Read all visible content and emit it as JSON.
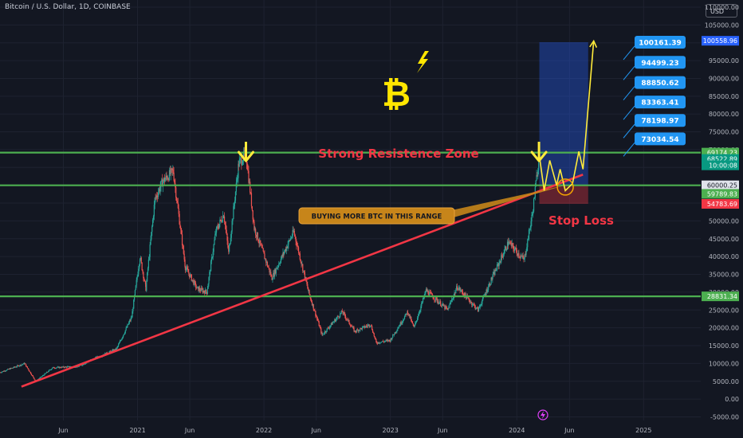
{
  "header": {
    "symbol_title": "Bitcoin / U.S. Dollar, 1D, COINBASE",
    "currency_button": "USD"
  },
  "colors": {
    "background": "#131722",
    "grid": "#1e2230",
    "axis_text": "#b2b5be",
    "up": "#26a69a",
    "down": "#ef5350",
    "support_line": "#4caf50",
    "trendline": "#f23645",
    "projection": "#ffeb3b",
    "target_label": "#2196f3",
    "resistance_text": "#f23645",
    "callout": "#c7851a"
  },
  "chart_data": {
    "type": "candlestick",
    "y_axis": {
      "ticks": [
        "110000.00",
        "105000.00",
        "100000.00",
        "95000.00",
        "90000.00",
        "85000.00",
        "80000.00",
        "75000.00",
        "70000.00",
        "65000.00",
        "60000.00",
        "55000.00",
        "50000.00",
        "45000.00",
        "40000.00",
        "35000.00",
        "30000.00",
        "25000.00",
        "20000.00",
        "15000.00",
        "10000.00",
        "5000.00",
        "0.00",
        "-5000.00"
      ],
      "ylim": [
        -6000,
        112000
      ]
    },
    "x_axis": {
      "ticks": [
        "Jun",
        "2021",
        "Jun",
        "2022",
        "Jun",
        "2023",
        "Jun",
        "2024",
        "Jun",
        "2025"
      ],
      "tick_dates": [
        "2020-06-01",
        "2021-01-01",
        "2021-06-01",
        "2022-01-01",
        "2022-06-01",
        "2023-01-01",
        "2023-06-01",
        "2024-01-01",
        "2024-06-01",
        "2025-01-01"
      ],
      "xlim": [
        "2019-12-01",
        "2025-06-15"
      ]
    },
    "price_path": [
      {
        "date": "2019-12-01",
        "price": 7500
      },
      {
        "date": "2020-02-10",
        "price": 10000
      },
      {
        "date": "2020-03-13",
        "price": 5000
      },
      {
        "date": "2020-05-01",
        "price": 8800
      },
      {
        "date": "2020-07-15",
        "price": 9200
      },
      {
        "date": "2020-09-01",
        "price": 11500
      },
      {
        "date": "2020-11-01",
        "price": 14000
      },
      {
        "date": "2020-12-15",
        "price": 23000
      },
      {
        "date": "2021-01-08",
        "price": 40000
      },
      {
        "date": "2021-01-25",
        "price": 31000
      },
      {
        "date": "2021-02-20",
        "price": 56000
      },
      {
        "date": "2021-03-14",
        "price": 61000
      },
      {
        "date": "2021-04-14",
        "price": 64000
      },
      {
        "date": "2021-05-19",
        "price": 37000
      },
      {
        "date": "2021-06-22",
        "price": 31000
      },
      {
        "date": "2021-07-20",
        "price": 30000
      },
      {
        "date": "2021-08-15",
        "price": 47000
      },
      {
        "date": "2021-09-07",
        "price": 52000
      },
      {
        "date": "2021-09-21",
        "price": 41000
      },
      {
        "date": "2021-10-20",
        "price": 66000
      },
      {
        "date": "2021-11-10",
        "price": 69000
      },
      {
        "date": "2021-12-04",
        "price": 48000
      },
      {
        "date": "2022-01-24",
        "price": 34000
      },
      {
        "date": "2022-03-28",
        "price": 47000
      },
      {
        "date": "2022-05-10",
        "price": 30000
      },
      {
        "date": "2022-06-18",
        "price": 18000
      },
      {
        "date": "2022-08-15",
        "price": 24500
      },
      {
        "date": "2022-09-20",
        "price": 19000
      },
      {
        "date": "2022-11-05",
        "price": 21000
      },
      {
        "date": "2022-11-21",
        "price": 15800
      },
      {
        "date": "2022-12-31",
        "price": 16500
      },
      {
        "date": "2023-02-20",
        "price": 24500
      },
      {
        "date": "2023-03-10",
        "price": 20000
      },
      {
        "date": "2023-04-14",
        "price": 30500
      },
      {
        "date": "2023-06-15",
        "price": 25000
      },
      {
        "date": "2023-07-13",
        "price": 31500
      },
      {
        "date": "2023-09-11",
        "price": 25000
      },
      {
        "date": "2023-10-24",
        "price": 34500
      },
      {
        "date": "2023-12-08",
        "price": 44000
      },
      {
        "date": "2024-01-22",
        "price": 39000
      },
      {
        "date": "2024-02-15",
        "price": 52000
      },
      {
        "date": "2024-03-05",
        "price": 68000
      }
    ],
    "horizontal_lines": [
      {
        "price": 69174.23,
        "color": "#4caf50",
        "label": "69174.23"
      },
      {
        "price": 60000.25,
        "color": "#4caf50",
        "label": "60000.25"
      },
      {
        "price": 28831.34,
        "color": "#4caf50",
        "label": "28831.34"
      }
    ],
    "trendline": {
      "from": {
        "date": "2020-02-01",
        "price": 3500
      },
      "to": {
        "date": "2024-07-10",
        "price": 63000
      }
    },
    "position_box": {
      "start": "2024-03-06",
      "end": "2024-07-25",
      "entry": 60000.25,
      "target": 100161.39,
      "stop": 54783.69
    },
    "projection_path": [
      {
        "date": "2024-03-05",
        "price": 69000
      },
      {
        "date": "2024-03-20",
        "price": 58500
      },
      {
        "date": "2024-04-05",
        "price": 67000
      },
      {
        "date": "2024-04-25",
        "price": 60000
      },
      {
        "date": "2024-05-05",
        "price": 64500
      },
      {
        "date": "2024-05-20",
        "price": 58500
      },
      {
        "date": "2024-06-10",
        "price": 60500
      },
      {
        "date": "2024-06-28",
        "price": 69500
      },
      {
        "date": "2024-07-10",
        "price": 64500
      },
      {
        "date": "2024-08-10",
        "price": 100500
      }
    ],
    "targets": [
      "100161.39",
      "94499.23",
      "88850.62",
      "83363.41",
      "78198.97",
      "73034.54"
    ],
    "target_prices": [
      100161.39,
      94499.23,
      88850.62,
      83363.41,
      78198.97,
      73034.54
    ],
    "price_labels": [
      {
        "text": "100558.96",
        "price": 100558.96,
        "bg": "#2962ff"
      },
      {
        "text": "69174.23",
        "price": 69174.23,
        "bg": "#4caf50"
      },
      {
        "text": "68522.89",
        "price": 67400,
        "bg": "#089981"
      },
      {
        "text": "10:00:08",
        "price": 65600,
        "bg": "#089981"
      },
      {
        "text": "60000.25",
        "price": 60000.25,
        "bg": "#e0e3eb",
        "fg": "#131722"
      },
      {
        "text": "59789.83",
        "price": 57600,
        "bg": "#4caf50"
      },
      {
        "text": "54783.69",
        "price": 54783.69,
        "bg": "#f23645"
      },
      {
        "text": "28831.34",
        "price": 28831.34,
        "bg": "#4caf50"
      }
    ],
    "annotations": {
      "resistance_zone": "Strong Resistence Zone",
      "buying_note": "BUYING MORE BTC IN THIS RANGE",
      "stop_loss": "Stop Loss",
      "bitcoin_symbol": "₿"
    },
    "arrow_markers": [
      {
        "date": "2021-11-10",
        "price": 76000
      },
      {
        "date": "2024-03-05",
        "price": 76000
      }
    ]
  }
}
